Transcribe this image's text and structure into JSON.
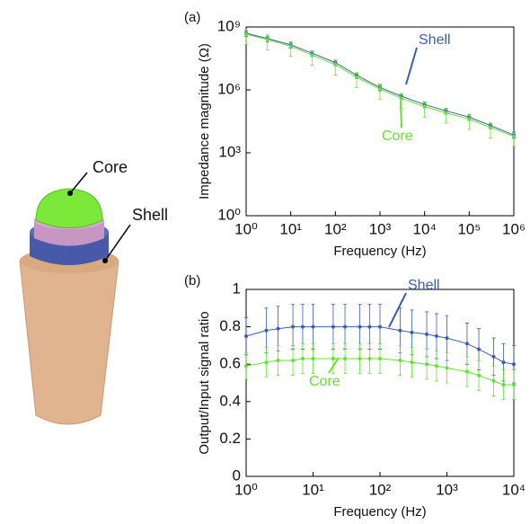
{
  "illustration": {
    "labels": [
      "Core",
      "Shell"
    ]
  },
  "chart_data": [
    {
      "type": "line",
      "panel_label": "(a)",
      "x_label": "Frequency (Hz)",
      "y_label": "Impedance magnitude (Ω)",
      "xscale": "log",
      "yscale": "log",
      "xlim": [
        1,
        1000000
      ],
      "ylim": [
        1,
        1000000000
      ],
      "xticks": [
        {
          "value": 1,
          "label": "10⁰"
        },
        {
          "value": 10,
          "label": "10¹"
        },
        {
          "value": 100,
          "label": "10²"
        },
        {
          "value": 1000,
          "label": "10³"
        },
        {
          "value": 10000,
          "label": "10⁴"
        },
        {
          "value": 100000,
          "label": "10⁵"
        },
        {
          "value": 1000000,
          "label": "10⁶"
        }
      ],
      "yticks": [
        {
          "value": 1,
          "label": "10⁰"
        },
        {
          "value": 1000,
          "label": "10³"
        },
        {
          "value": 1000000,
          "label": "10⁶"
        },
        {
          "value": 1000000000,
          "label": "10⁹"
        }
      ],
      "x": [
        1,
        3,
        10,
        30,
        100,
        300,
        1000,
        3000,
        10000,
        30000,
        100000,
        300000,
        1000000
      ],
      "series": [
        {
          "name": "Shell",
          "color": "#3a5fb0",
          "values": [
            500000000,
            280000000,
            140000000,
            56000000,
            20000000,
            5000000,
            1300000,
            500000,
            200000,
            100000,
            50000,
            20000,
            7000
          ],
          "errors": [
            150000000,
            84000000,
            42000000,
            17000000,
            6000000,
            1500000,
            390000,
            150000,
            60000,
            30000,
            15000,
            6000,
            2100
          ]
        },
        {
          "name": "Core",
          "color": "#66e033",
          "values": [
            450000000,
            250000000,
            120000000,
            45000000,
            16000000,
            4000000,
            1100000,
            400000,
            160000,
            80000,
            40000,
            16000,
            6000
          ],
          "errors": [
            300000000,
            170000000,
            80000000,
            30000000,
            11000000,
            2700000,
            740000,
            270000,
            110000,
            54000,
            27000,
            11000,
            4000
          ]
        }
      ]
    },
    {
      "type": "line",
      "panel_label": "(b)",
      "x_label": "Frequency (Hz)",
      "y_label": "Output/Input signal ratio",
      "xscale": "log",
      "yscale": "linear",
      "xlim": [
        1,
        10000
      ],
      "ylim": [
        0,
        1
      ],
      "xticks": [
        {
          "value": 1,
          "label": "10⁰"
        },
        {
          "value": 10,
          "label": "10¹"
        },
        {
          "value": 100,
          "label": "10²"
        },
        {
          "value": 1000,
          "label": "10³"
        },
        {
          "value": 10000,
          "label": "10⁴"
        }
      ],
      "yticks": [
        0,
        0.2,
        0.4,
        0.6,
        0.8,
        1
      ],
      "x": [
        1,
        2,
        3,
        5,
        7,
        10,
        20,
        30,
        50,
        70,
        100,
        200,
        300,
        500,
        700,
        1000,
        2000,
        3000,
        5000,
        7000,
        10000
      ],
      "series": [
        {
          "name": "Shell",
          "color": "#3a5fb0",
          "values": [
            0.75,
            0.78,
            0.79,
            0.8,
            0.8,
            0.8,
            0.8,
            0.8,
            0.8,
            0.8,
            0.8,
            0.78,
            0.77,
            0.76,
            0.75,
            0.74,
            0.71,
            0.68,
            0.64,
            0.61,
            0.6
          ],
          "errors": [
            0.1,
            0.12,
            0.12,
            0.12,
            0.12,
            0.12,
            0.12,
            0.12,
            0.12,
            0.12,
            0.12,
            0.12,
            0.12,
            0.12,
            0.12,
            0.12,
            0.11,
            0.11,
            0.1,
            0.1,
            0.1
          ]
        },
        {
          "name": "Core",
          "color": "#66e033",
          "values": [
            0.59,
            0.61,
            0.62,
            0.62,
            0.63,
            0.63,
            0.63,
            0.63,
            0.63,
            0.63,
            0.63,
            0.62,
            0.61,
            0.6,
            0.59,
            0.58,
            0.56,
            0.54,
            0.51,
            0.49,
            0.49
          ],
          "errors": [
            0.07,
            0.08,
            0.08,
            0.08,
            0.08,
            0.08,
            0.08,
            0.08,
            0.08,
            0.08,
            0.08,
            0.08,
            0.08,
            0.08,
            0.08,
            0.08,
            0.08,
            0.08,
            0.08,
            0.08,
            0.08
          ]
        }
      ]
    }
  ]
}
